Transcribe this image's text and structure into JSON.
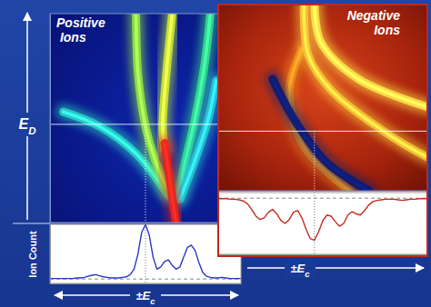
{
  "chart_data": [
    {
      "type": "heatmap",
      "title": "Positive Ions",
      "ylabel": "ED",
      "xlim": [
        0,
        100
      ],
      "ylim": [
        0,
        100
      ],
      "tick_labels": false,
      "reference_lines": {
        "x": 50,
        "y": 47
      },
      "series": [
        {
          "color": "#2ccfc4",
          "x": [
            62,
            45,
            26,
            7
          ],
          "values": [
            13,
            33,
            46,
            53
          ]
        },
        {
          "color": "#8fe046",
          "x": [
            62,
            55,
            50,
            46,
            45
          ],
          "values": [
            15,
            30,
            46,
            72,
            100
          ]
        },
        {
          "color": "#36d98c",
          "x": [
            67,
            71,
            76,
            81,
            84
          ],
          "values": [
            13,
            30,
            50,
            76,
            100
          ]
        },
        {
          "color": "#2bc3d0",
          "x": [
            68,
            76,
            83,
            87
          ],
          "values": [
            11,
            30,
            50,
            68
          ]
        },
        {
          "color": "#c8e83a",
          "x": [
            60,
            59,
            61,
            64
          ],
          "values": [
            35,
            46,
            72,
            100
          ]
        },
        {
          "color": "#e3241c",
          "x": [
            66,
            64,
            62,
            60
          ],
          "values": [
            0,
            12,
            25,
            38
          ]
        }
      ]
    },
    {
      "type": "line",
      "xlabel": "±Ec",
      "ylabel": "Ion Count",
      "xlim": [
        0,
        100
      ],
      "ylim": [
        -8,
        100
      ],
      "tick_labels": false,
      "reference_lines": {
        "x": 50,
        "y": 0
      },
      "x": [
        0,
        2,
        4,
        6,
        8,
        10,
        12,
        14,
        16,
        18,
        20,
        22,
        24,
        26,
        28,
        30,
        32,
        34,
        36,
        38,
        40,
        42,
        44,
        46,
        48,
        50,
        52,
        54,
        56,
        58,
        60,
        62,
        64,
        66,
        68,
        70,
        72,
        74,
        76,
        78,
        80,
        82,
        84,
        86,
        88,
        90,
        92,
        94,
        96,
        98,
        100
      ],
      "series": [
        {
          "color": "#2a35c4",
          "values": [
            1,
            1,
            1,
            1,
            1,
            1,
            1,
            2,
            2,
            3,
            5,
            7,
            8,
            6,
            4,
            3,
            2,
            2,
            2,
            3,
            4,
            8,
            18,
            45,
            85,
            100,
            80,
            40,
            18,
            22,
            32,
            35,
            25,
            18,
            22,
            40,
            58,
            62,
            52,
            30,
            12,
            5,
            3,
            2,
            2,
            3,
            2,
            1,
            1,
            1,
            1
          ]
        }
      ]
    },
    {
      "type": "heatmap",
      "title": "Negative Ions",
      "xlim": [
        0,
        100
      ],
      "ylim": [
        0,
        100
      ],
      "tick_labels": false,
      "reference_lines": {
        "x": 46,
        "y": 32
      },
      "series": [
        {
          "color": "#f08a1e",
          "x": [
            40,
            34,
            41,
            63
          ],
          "values": [
            76,
            54,
            24,
            0
          ]
        },
        {
          "color": "#f5c23a",
          "x": [
            41,
            43,
            54,
            83,
            100
          ],
          "values": [
            100,
            73,
            54,
            29,
            18
          ]
        },
        {
          "color": "#ffe04a",
          "x": [
            46,
            49,
            67,
            100
          ],
          "values": [
            100,
            80,
            60,
            45
          ]
        },
        {
          "color": "#0b1a6e",
          "x": [
            26,
            37,
            52,
            72
          ],
          "values": [
            60,
            37,
            15,
            0
          ]
        }
      ]
    },
    {
      "type": "line",
      "xlabel": "±Ec",
      "xlim": [
        0,
        100
      ],
      "ylim": [
        100,
        -10
      ],
      "tick_labels": false,
      "reference_lines": {
        "x": 46,
        "y": 0
      },
      "x": [
        0,
        2,
        4,
        6,
        8,
        10,
        12,
        14,
        16,
        18,
        20,
        22,
        24,
        26,
        28,
        30,
        32,
        34,
        36,
        38,
        40,
        42,
        44,
        46,
        48,
        50,
        52,
        54,
        56,
        58,
        60,
        62,
        64,
        66,
        68,
        70,
        72,
        74,
        76,
        78,
        80,
        82,
        84,
        86,
        88,
        90,
        92,
        94,
        96,
        98,
        100
      ],
      "series": [
        {
          "color": "#c42a1e",
          "values": [
            1,
            1,
            1,
            2,
            2,
            3,
            5,
            10,
            20,
            32,
            38,
            35,
            25,
            20,
            28,
            40,
            45,
            38,
            25,
            22,
            35,
            55,
            72,
            75,
            60,
            40,
            30,
            32,
            42,
            50,
            45,
            30,
            24,
            28,
            30,
            22,
            12,
            6,
            4,
            3,
            2,
            2,
            2,
            3,
            4,
            3,
            2,
            2,
            1,
            1,
            1
          ]
        }
      ]
    }
  ]
}
